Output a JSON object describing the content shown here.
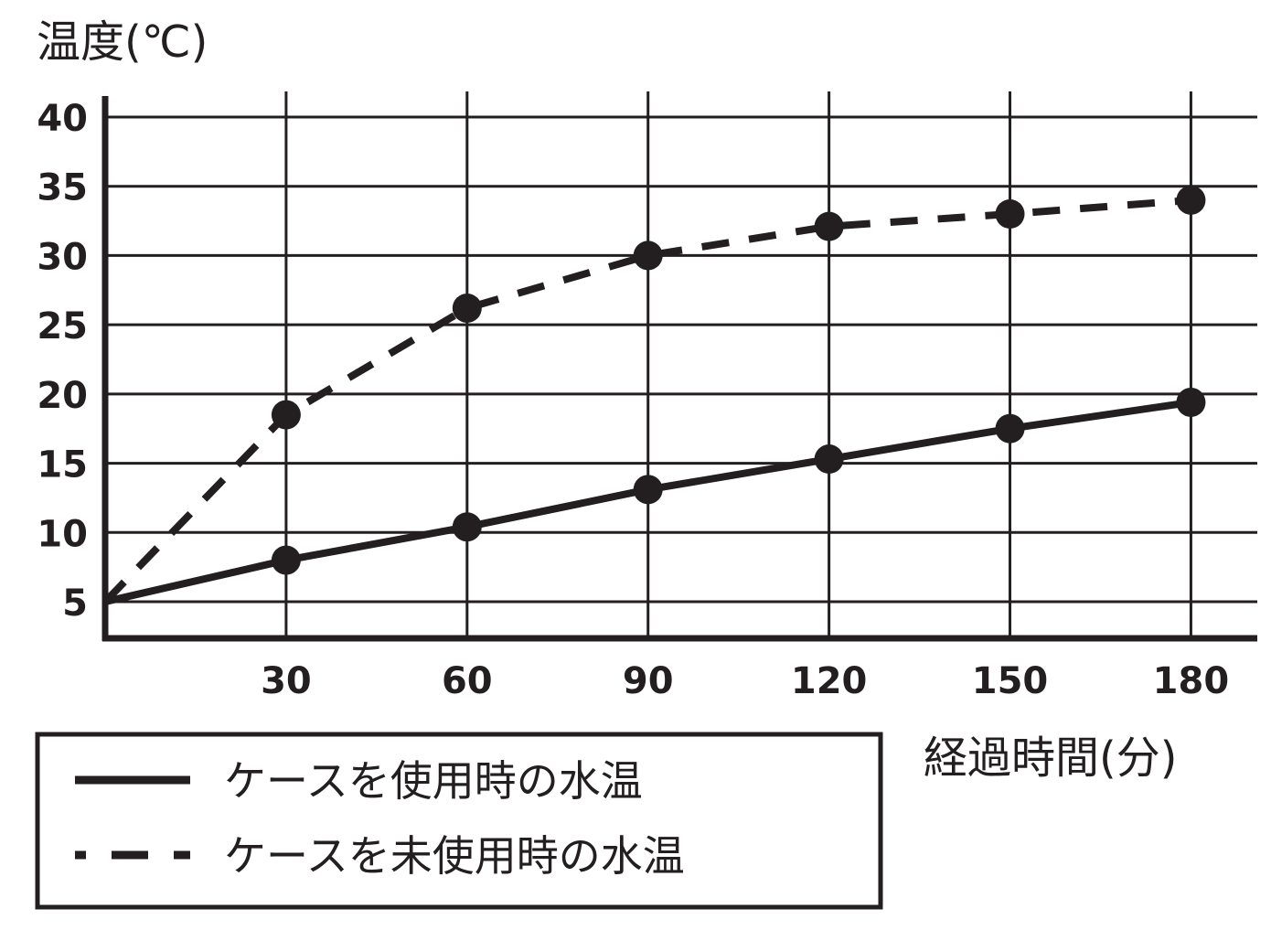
{
  "chart_data": {
    "type": "line",
    "ylabel": "温度(℃)",
    "xlabel": "経過時間(分)",
    "x": [
      0,
      30,
      60,
      90,
      120,
      150,
      180
    ],
    "xticks": [
      30,
      60,
      90,
      120,
      150,
      180
    ],
    "yticks": [
      5,
      10,
      15,
      20,
      25,
      30,
      35,
      40
    ],
    "xlim": [
      0,
      191
    ],
    "ylim": [
      2.4,
      40
    ],
    "grid": true,
    "legend_placement": "bottom-left",
    "series": [
      {
        "name": "ケースを使用時の水温",
        "style": "solid",
        "values": [
          5,
          8,
          10.4,
          13.1,
          15.3,
          17.5,
          19.4
        ]
      },
      {
        "name": "ケースを未使用時の水温",
        "style": "dashed",
        "values": [
          5,
          18.5,
          26.2,
          30,
          32.1,
          33,
          34
        ]
      }
    ],
    "colors": {
      "ink": "#231f20"
    }
  }
}
